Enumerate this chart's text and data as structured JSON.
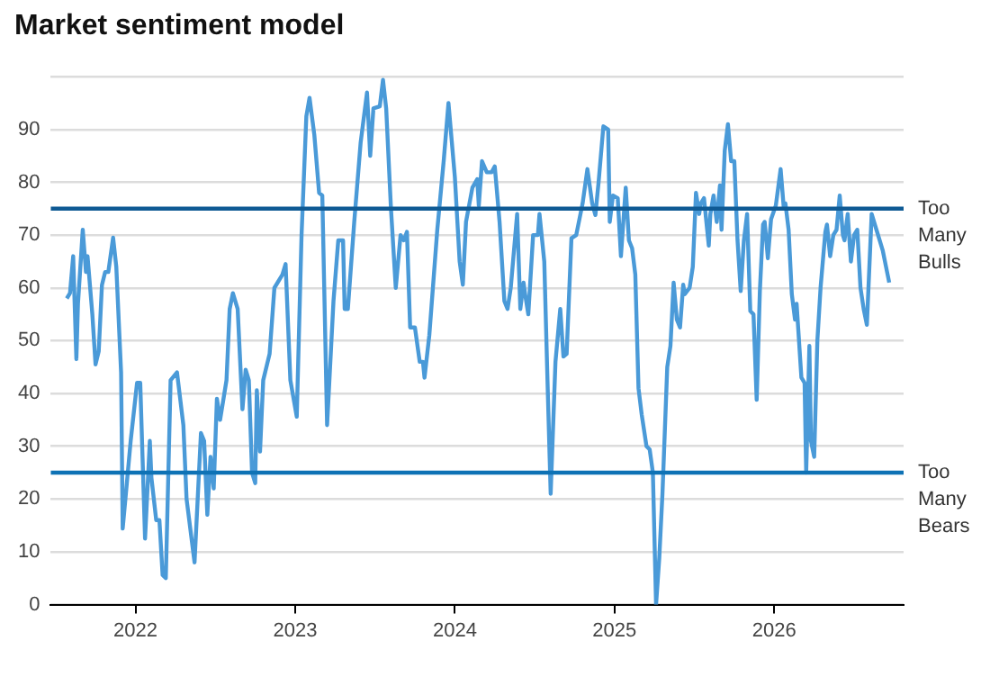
{
  "chart_data": {
    "type": "line",
    "title": "Market sentiment model",
    "x": [
      2021.57,
      2021.59,
      2021.61,
      2021.63,
      2021.64,
      2021.67,
      2021.69,
      2021.7,
      2021.73,
      2021.75,
      2021.77,
      2021.79,
      2021.81,
      2021.83,
      2021.86,
      2021.88,
      2021.91,
      2021.92,
      2021.94,
      2021.97,
      2022.01,
      2022.03,
      2022.06,
      2022.09,
      2022.1,
      2022.13,
      2022.15,
      2022.17,
      2022.19,
      2022.22,
      2022.26,
      2022.3,
      2022.32,
      2022.37,
      2022.41,
      2022.43,
      2022.45,
      2022.47,
      2022.49,
      2022.51,
      2022.53,
      2022.57,
      2022.59,
      2022.61,
      2022.64,
      2022.67,
      2022.69,
      2022.71,
      2022.73,
      2022.75,
      2022.76,
      2022.78,
      2022.8,
      2022.84,
      2022.87,
      2022.92,
      2022.94,
      2022.97,
      2023.01,
      2023.04,
      2023.07,
      2023.09,
      2023.12,
      2023.15,
      2023.17,
      2023.2,
      2023.24,
      2023.27,
      2023.3,
      2023.31,
      2023.33,
      2023.37,
      2023.41,
      2023.45,
      2023.47,
      2023.49,
      2023.53,
      2023.55,
      2023.57,
      2023.6,
      2023.63,
      2023.66,
      2023.68,
      2023.7,
      2023.72,
      2023.75,
      2023.78,
      2023.8,
      2023.81,
      2023.84,
      2023.89,
      2023.93,
      2023.96,
      2024.0,
      2024.03,
      2024.05,
      2024.07,
      2024.11,
      2024.14,
      2024.15,
      2024.17,
      2024.2,
      2024.23,
      2024.25,
      2024.28,
      2024.31,
      2024.33,
      2024.35,
      2024.39,
      2024.41,
      2024.43,
      2024.44,
      2024.46,
      2024.49,
      2024.52,
      2024.53,
      2024.56,
      2024.58,
      2024.6,
      2024.63,
      2024.66,
      2024.68,
      2024.7,
      2024.73,
      2024.76,
      2024.8,
      2024.83,
      2024.86,
      2024.88,
      2024.9,
      2024.93,
      2024.96,
      2024.97,
      2024.99,
      2025.02,
      2025.04,
      2025.07,
      2025.09,
      2025.11,
      2025.13,
      2025.15,
      2025.17,
      2025.2,
      2025.22,
      2025.24,
      2025.26,
      2025.28,
      2025.3,
      2025.33,
      2025.35,
      2025.37,
      2025.39,
      2025.41,
      2025.43,
      2025.44,
      2025.47,
      2025.49,
      2025.51,
      2025.53,
      2025.54,
      2025.56,
      2025.59,
      2025.6,
      2025.62,
      2025.64,
      2025.66,
      2025.67,
      2025.69,
      2025.71,
      2025.73,
      2025.75,
      2025.77,
      2025.79,
      2025.81,
      2025.83,
      2025.85,
      2025.87,
      2025.89,
      2025.91,
      2025.93,
      2025.94,
      2025.96,
      2025.98,
      2026.01,
      2026.04,
      2026.06,
      2026.07,
      2026.09,
      2026.11,
      2026.13,
      2026.14,
      2026.17,
      2026.19,
      2026.2,
      2026.22,
      2026.23,
      2026.25,
      2026.27,
      2026.29,
      2026.32,
      2026.33,
      2026.35,
      2026.37,
      2026.39,
      2026.41,
      2026.43,
      2026.44,
      2026.46,
      2026.48,
      2026.5,
      2026.52,
      2026.54,
      2026.56,
      2026.58,
      2026.61,
      2026.64,
      2026.66,
      2026.68,
      2026.71,
      2026.72
    ],
    "series": [
      {
        "color": "#4a9ad8",
        "values": [
          58,
          59,
          66,
          46.5,
          57,
          71,
          63,
          66,
          55,
          45.5,
          48,
          60.5,
          63,
          63,
          69.5,
          64,
          44,
          14.4,
          21,
          31,
          42,
          42,
          12.5,
          31,
          24,
          16,
          16,
          5.6,
          5,
          42.5,
          44,
          34,
          20,
          8,
          32.5,
          31,
          17,
          28,
          22,
          39,
          35,
          42.5,
          56,
          59,
          56,
          37,
          44.5,
          42.5,
          25,
          23,
          40.6,
          29,
          42.5,
          47.5,
          60,
          62.5,
          64.5,
          42.5,
          35.6,
          70,
          92.5,
          96,
          89,
          78,
          77.5,
          34,
          57.5,
          69,
          69,
          56,
          56,
          72.5,
          87.5,
          97,
          85,
          94,
          94.4,
          99.4,
          94,
          75,
          60,
          70,
          69,
          70.6,
          52.5,
          52.5,
          46,
          46,
          43,
          51,
          71,
          84,
          95,
          81,
          65,
          60.6,
          72.5,
          79,
          80.6,
          75.6,
          84,
          81.9,
          81.9,
          83,
          72.5,
          57.5,
          56,
          60,
          74,
          56,
          61,
          58.8,
          55,
          70,
          70,
          74,
          65,
          42.5,
          21,
          46,
          56,
          47,
          47.5,
          69.4,
          70,
          76,
          82.5,
          76,
          73.8,
          80,
          90.6,
          90,
          72.5,
          77.5,
          77,
          66,
          79,
          69,
          67.5,
          62.5,
          41,
          36,
          30,
          29.4,
          25,
          0,
          8.8,
          21,
          45,
          49,
          61,
          54,
          52.5,
          60.6,
          58.8,
          60,
          64,
          78,
          74,
          76,
          77,
          68,
          74,
          77.5,
          72.5,
          79.4,
          71,
          86,
          91,
          84,
          84,
          69,
          59.4,
          69,
          74,
          55.6,
          55,
          38.8,
          59.4,
          72,
          72.5,
          65.6,
          73,
          75.6,
          82.5,
          75,
          76,
          71,
          58.8,
          54,
          57,
          43,
          42,
          25,
          49,
          31,
          28,
          50,
          60,
          70.6,
          72,
          66,
          70,
          71,
          77.5,
          70,
          69,
          74,
          65,
          70,
          71,
          60,
          56,
          53,
          74,
          71,
          69,
          67,
          62.5,
          61
        ]
      }
    ],
    "xlim": [
      2021.47,
      2026.81
    ],
    "xticks": [
      2022,
      2023,
      2024,
      2025,
      2026
    ],
    "ylim": [
      0,
      100
    ],
    "yticks": [
      0,
      10,
      20,
      30,
      40,
      50,
      60,
      70,
      80,
      90,
      {
        "value": 100,
        "label": null
      }
    ],
    "grid": "y",
    "marker": "none",
    "line_style": "solid",
    "ref_lines": [
      {
        "axis": "y",
        "value": 75,
        "label": "Too Many Bulls",
        "color": "#0f5a94"
      },
      {
        "axis": "y",
        "value": 25,
        "label": "Too Many Bears",
        "color": "#0e72b5"
      }
    ]
  }
}
